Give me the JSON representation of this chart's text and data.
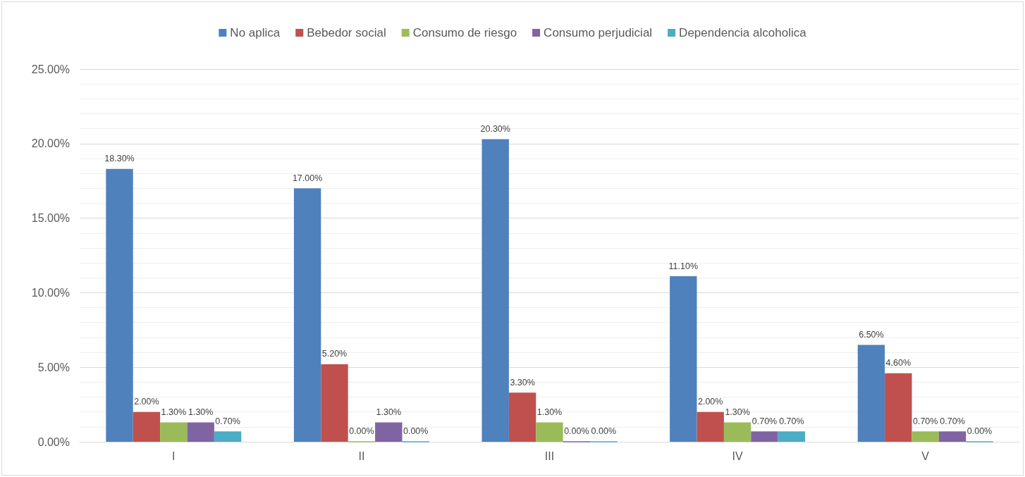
{
  "chart_data": {
    "type": "bar",
    "categories": [
      "I",
      "II",
      "III",
      "IV",
      "V"
    ],
    "series": [
      {
        "name": "No aplica",
        "color": "#4f81bd",
        "values": [
          18.3,
          17.0,
          20.3,
          11.1,
          6.5
        ],
        "value_labels": [
          "18.30%",
          "17.00%",
          "20.30%",
          "11.10%",
          "6.50%"
        ]
      },
      {
        "name": "Bebedor social",
        "color": "#c0504d",
        "values": [
          2.0,
          5.2,
          3.3,
          2.0,
          4.6
        ],
        "value_labels": [
          "2.00%",
          "5.20%",
          "3.30%",
          "2.00%",
          "4.60%"
        ]
      },
      {
        "name": "Consumo de riesgo",
        "color": "#9bbb59",
        "values": [
          1.3,
          0.0,
          1.3,
          1.3,
          0.7
        ],
        "value_labels": [
          "1.30%",
          "0.00%",
          "1.30%",
          "1.30%",
          "0.70%"
        ]
      },
      {
        "name": "Consumo perjudicial",
        "color": "#8064a2",
        "values": [
          1.3,
          1.3,
          0.0,
          0.7,
          0.7
        ],
        "value_labels": [
          "1.30%",
          "1.30%",
          "0.00%",
          "0.70%",
          "0.70%"
        ]
      },
      {
        "name": "Dependencia alcoholica",
        "color": "#4bacc6",
        "values": [
          0.7,
          0.0,
          0.0,
          0.7,
          0.0
        ],
        "value_labels": [
          "0.70%",
          "0.00%",
          "0.00%",
          "0.70%",
          "0.00%"
        ]
      }
    ],
    "ylim": [
      0,
      25
    ],
    "yticks": [
      {
        "value": 0,
        "label": "0.00%"
      },
      {
        "value": 1,
        "label": null
      },
      {
        "value": 2,
        "label": null
      },
      {
        "value": 3,
        "label": null
      },
      {
        "value": 4,
        "label": null
      },
      {
        "value": 5,
        "label": "5.00%"
      },
      {
        "value": 6,
        "label": null
      },
      {
        "value": 7,
        "label": null
      },
      {
        "value": 8,
        "label": null
      },
      {
        "value": 9,
        "label": null
      },
      {
        "value": 10,
        "label": "10.00%"
      },
      {
        "value": 11,
        "label": null
      },
      {
        "value": 12,
        "label": null
      },
      {
        "value": 13,
        "label": null
      },
      {
        "value": 14,
        "label": null
      },
      {
        "value": 15,
        "label": "15.00%"
      },
      {
        "value": 16,
        "label": null
      },
      {
        "value": 17,
        "label": null
      },
      {
        "value": 18,
        "label": null
      },
      {
        "value": 19,
        "label": null
      },
      {
        "value": 20,
        "label": "20.00%"
      },
      {
        "value": 21,
        "label": null
      },
      {
        "value": 22,
        "label": null
      },
      {
        "value": 23,
        "label": null
      },
      {
        "value": 24,
        "label": null
      },
      {
        "value": 25,
        "label": "25.00%"
      }
    ],
    "grid": "y",
    "legend": "top"
  }
}
